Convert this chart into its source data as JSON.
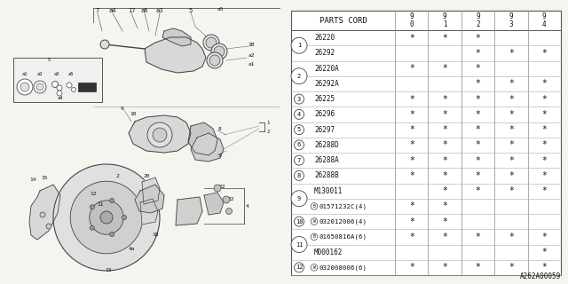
{
  "bg_color": "#f5f5f0",
  "table_rows": [
    {
      "ref": "1",
      "sub_rows": [
        {
          "part": "26220",
          "stars": [
            "*",
            "*",
            "*",
            "",
            ""
          ]
        },
        {
          "part": "26292",
          "stars": [
            "",
            "",
            "*",
            "*",
            "*"
          ]
        }
      ]
    },
    {
      "ref": "2",
      "sub_rows": [
        {
          "part": "26220A",
          "stars": [
            "*",
            "*",
            "*",
            "",
            ""
          ]
        },
        {
          "part": "26292A",
          "stars": [
            "",
            "",
            "*",
            "*",
            "*"
          ]
        }
      ]
    },
    {
      "ref": "3",
      "sub_rows": [
        {
          "part": "26225",
          "stars": [
            "*",
            "*",
            "*",
            "*",
            "*"
          ]
        }
      ]
    },
    {
      "ref": "4",
      "sub_rows": [
        {
          "part": "26296",
          "stars": [
            "*",
            "*",
            "*",
            "*",
            "*"
          ]
        }
      ]
    },
    {
      "ref": "5",
      "sub_rows": [
        {
          "part": "26297",
          "stars": [
            "*",
            "*",
            "*",
            "*",
            "*"
          ]
        }
      ]
    },
    {
      "ref": "6",
      "sub_rows": [
        {
          "part": "26288D",
          "stars": [
            "*",
            "*",
            "*",
            "*",
            "*"
          ]
        }
      ]
    },
    {
      "ref": "7",
      "sub_rows": [
        {
          "part": "26288A",
          "stars": [
            "*",
            "*",
            "*",
            "*",
            "*"
          ]
        }
      ]
    },
    {
      "ref": "8",
      "sub_rows": [
        {
          "part": "26288B",
          "stars": [
            "*",
            "*",
            "*",
            "*",
            "*"
          ]
        }
      ]
    },
    {
      "ref": "9",
      "sub_rows": [
        {
          "part": "M130011",
          "stars": [
            "",
            "*",
            "*",
            "*",
            "*"
          ]
        },
        {
          "part": "B|01571232C(4)",
          "stars": [
            "*",
            "*",
            "",
            "",
            ""
          ]
        }
      ]
    },
    {
      "ref": "10",
      "sub_rows": [
        {
          "part": "W|032012006(4)",
          "stars": [
            "*",
            "*",
            "",
            "",
            ""
          ]
        }
      ]
    },
    {
      "ref": "11",
      "sub_rows": [
        {
          "part": "B|01650816A(6)",
          "stars": [
            "*",
            "*",
            "*",
            "*",
            "*"
          ]
        },
        {
          "part": "M000162",
          "stars": [
            "",
            "",
            "",
            "",
            "*"
          ]
        }
      ]
    },
    {
      "ref": "12",
      "sub_rows": [
        {
          "part": "W|032008006(6)",
          "stars": [
            "*",
            "*",
            "*",
            "*",
            "*"
          ]
        }
      ]
    }
  ],
  "footer_text": "A262A00059",
  "years": [
    "9\n0",
    "9\n1",
    "9\n2",
    "9\n3",
    "9\n4"
  ]
}
